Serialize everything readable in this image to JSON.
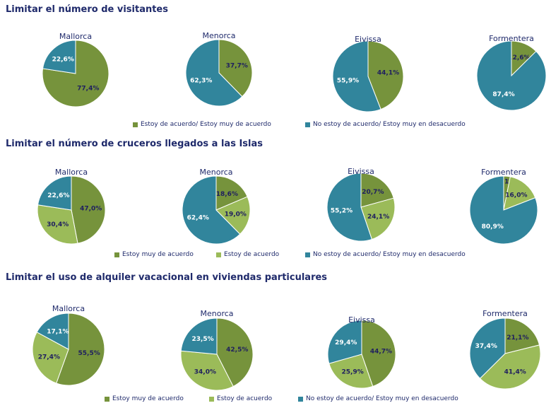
{
  "colors": {
    "muy_acuerdo": "#76933C",
    "acuerdo": "#9BBB59",
    "desacuerdo": "#31859C",
    "combined_acuerdo": "#76933C",
    "title": "#1F2A6B"
  },
  "chart_data": [
    {
      "type": "pie",
      "title": "Limitar el número de visitantes",
      "legend": [
        {
          "label": "Estoy de acuerdo/ Estoy muy de acuerdo",
          "color": "#76933C"
        },
        {
          "label": "No estoy de acuerdo/ Estoy muy en desacuerdo",
          "color": "#31859C"
        }
      ],
      "pies": [
        {
          "name": "Mallorca",
          "values": [
            77.4,
            22.6
          ],
          "labels": [
            "77,4%",
            "22,6%"
          ]
        },
        {
          "name": "Menorca",
          "values": [
            37.7,
            62.3
          ],
          "labels": [
            "37,7%",
            "62,3%"
          ]
        },
        {
          "name": "Eivissa",
          "values": [
            44.1,
            55.9
          ],
          "labels": [
            "44,1%",
            "55,9%"
          ]
        },
        {
          "name": "Formentera",
          "values": [
            12.6,
            87.4
          ],
          "labels": [
            "12,6%",
            "87,4%"
          ]
        }
      ]
    },
    {
      "type": "pie",
      "title": "Limitar el número de cruceros llegados a las Islas",
      "legend": [
        {
          "label": "Estoy muy de acuerdo",
          "color": "#76933C"
        },
        {
          "label": "Estoy de acuerdo",
          "color": "#9BBB59"
        },
        {
          "label": "No estoy de acuerdo/ Estoy muy en desacuerdo",
          "color": "#31859C"
        }
      ],
      "pies": [
        {
          "name": "Mallorca",
          "values": [
            47.0,
            30.4,
            22.6
          ],
          "labels": [
            "47,0%",
            "30,4%",
            "22,6%"
          ]
        },
        {
          "name": "Menorca",
          "values": [
            18.6,
            19.0,
            62.4
          ],
          "labels": [
            "18,6%",
            "19,0%",
            "62,4%"
          ]
        },
        {
          "name": "Eivissa",
          "values": [
            20.7,
            24.1,
            55.2
          ],
          "labels": [
            "20,7%",
            "24,1%",
            "55,2%"
          ]
        },
        {
          "name": "Formentera",
          "values": [
            3.1,
            16.0,
            80.9
          ],
          "labels": [
            "3,1%",
            "16,0%",
            "80,9%"
          ]
        }
      ]
    },
    {
      "type": "pie",
      "title": "Limitar el uso de alquiler vacacional en viviendas particulares",
      "legend": [
        {
          "label": "Estoy muy de acuerdo",
          "color": "#76933C"
        },
        {
          "label": "Estoy de acuerdo",
          "color": "#9BBB59"
        },
        {
          "label": "No estoy de acuerdo/ Estoy muy en desacuerdo",
          "color": "#31859C"
        }
      ],
      "pies": [
        {
          "name": "Mallorca",
          "values": [
            55.5,
            27.4,
            17.1
          ],
          "labels": [
            "55,5%",
            "27,4%",
            "17,1%"
          ]
        },
        {
          "name": "Menorca",
          "values": [
            42.5,
            34.0,
            23.5
          ],
          "labels": [
            "42,5%",
            "34,0%",
            "23,5%"
          ]
        },
        {
          "name": "Eivissa",
          "values": [
            44.7,
            25.9,
            29.4
          ],
          "labels": [
            "44,7%",
            "25,9%",
            "29,4%"
          ]
        },
        {
          "name": "Formentera",
          "values": [
            21.1,
            41.4,
            37.4
          ],
          "labels": [
            "21,1%",
            "41,4%",
            "37,4%"
          ]
        }
      ]
    }
  ]
}
